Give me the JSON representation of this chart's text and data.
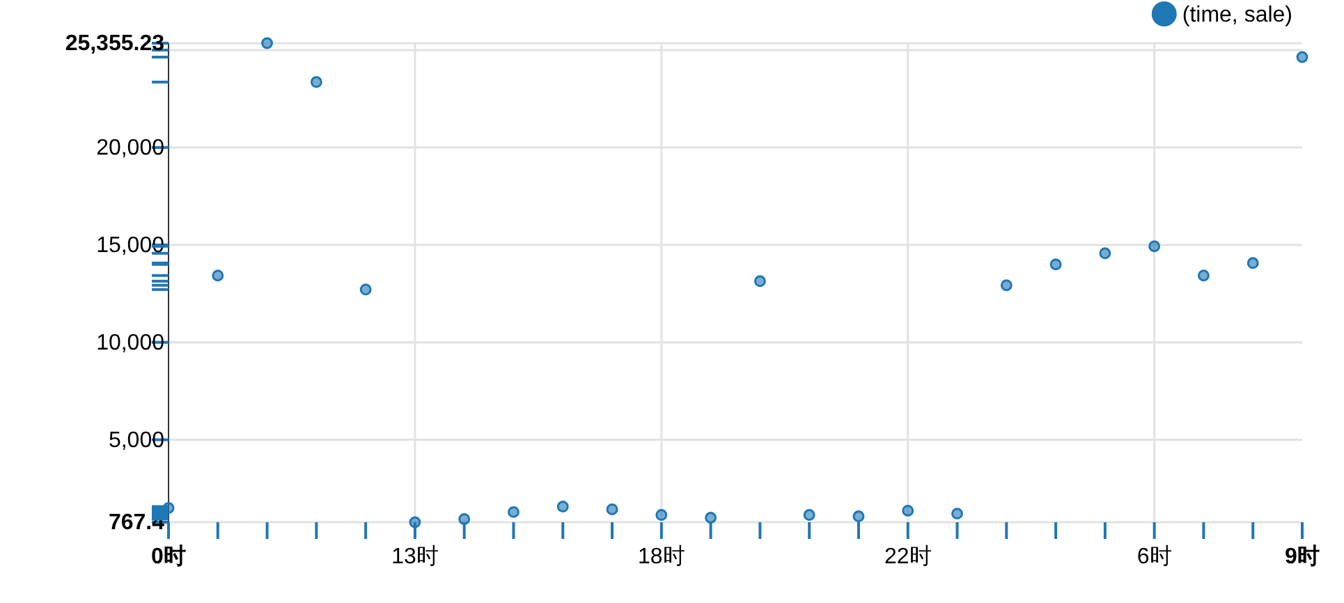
{
  "chart_data": {
    "type": "scatter",
    "categories": [
      "0时",
      null,
      null,
      null,
      null,
      "13时",
      null,
      null,
      null,
      null,
      "18时",
      null,
      null,
      null,
      null,
      "22时",
      null,
      null,
      null,
      null,
      "6时",
      null,
      null,
      "9时"
    ],
    "series": [
      {
        "name": "(time, sale)",
        "color": "#1f77b4",
        "values": [
          1500,
          13430,
          25355.23,
          23360,
          12710,
          767.4,
          930,
          1290,
          1570,
          1430,
          1140,
          1000,
          13140,
          1140,
          1070,
          1360,
          1210,
          12930,
          14000,
          14570,
          14930,
          13430,
          14070,
          24640
        ]
      }
    ],
    "ylim": [
      767.4,
      25355.23
    ],
    "yticks": [
      {
        "value": 767.4,
        "label": "767.4"
      },
      {
        "value": 5000,
        "label": "5,000"
      },
      {
        "value": 10000,
        "label": "10,000"
      },
      {
        "value": 15000,
        "label": "15,000"
      },
      {
        "value": 20000,
        "label": "20,000"
      },
      {
        "value": 25000,
        "label": null
      },
      {
        "value": 25355.23,
        "label": "25,355.23"
      },
      {
        "value": 1500,
        "label": null
      },
      {
        "value": 930,
        "label": null
      },
      {
        "value": 1290,
        "label": null
      },
      {
        "value": 1570,
        "label": null
      },
      {
        "value": 1430,
        "label": null
      },
      {
        "value": 1140,
        "label": null
      },
      {
        "value": 1000,
        "label": null
      },
      {
        "value": 1070,
        "label": null
      },
      {
        "value": 1360,
        "label": null
      },
      {
        "value": 1210,
        "label": null
      },
      {
        "value": 13430,
        "label": null
      },
      {
        "value": 23360,
        "label": null
      },
      {
        "value": 12710,
        "label": null
      },
      {
        "value": 13140,
        "label": null
      },
      {
        "value": 12930,
        "label": null
      },
      {
        "value": 14000,
        "label": null
      },
      {
        "value": 14570,
        "label": null
      },
      {
        "value": 14930,
        "label": null
      },
      {
        "value": 14070,
        "label": null
      },
      {
        "value": 24640,
        "label": null
      }
    ],
    "grid": true,
    "legend": "top right",
    "marker": "circle"
  }
}
